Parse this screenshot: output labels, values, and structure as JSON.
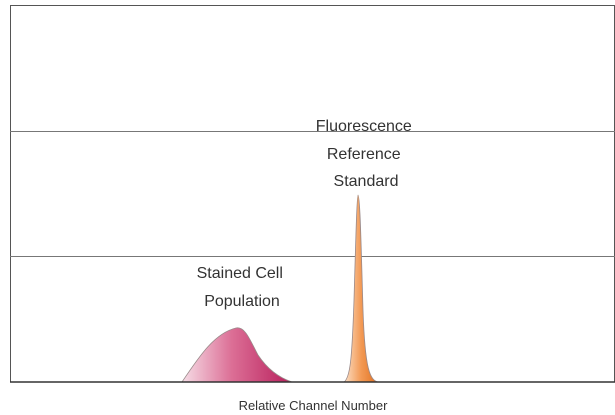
{
  "axis_label": "Relative Channel Number",
  "annotations": [
    {
      "lines": [
        "Fluorescence",
        "Reference",
        "Standard"
      ]
    },
    {
      "lines": [
        "Stained Cell",
        "Population"
      ]
    }
  ]
}
